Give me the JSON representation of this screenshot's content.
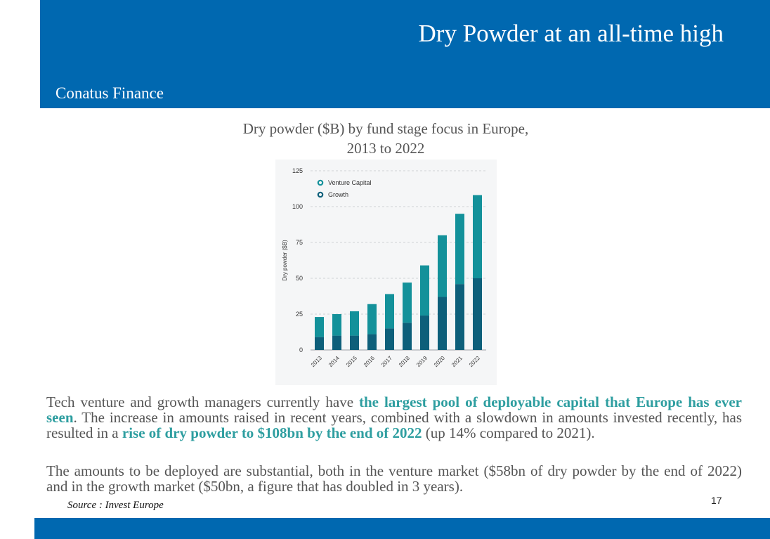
{
  "header": {
    "title": "Dry Powder at an all-time high",
    "brand": "Conatus Finance"
  },
  "chart_caption": {
    "line1": "Dry powder ($B) by fund stage focus in Europe,",
    "line2": "2013 to 2022"
  },
  "colors": {
    "header_bg": "#0068b0",
    "venture_capital": "#13919a",
    "growth": "#0d5f7a",
    "highlight_text": "#2e9ea0"
  },
  "chart_data": {
    "type": "bar",
    "stacked": true,
    "categories": [
      "2013",
      "2014",
      "2015",
      "2016",
      "2017",
      "2018",
      "2019",
      "2020",
      "2021",
      "2022"
    ],
    "series": [
      {
        "name": "Growth",
        "values": [
          9,
          10,
          10,
          11,
          15,
          19,
          24,
          37,
          46,
          50
        ]
      },
      {
        "name": "Venture Capital",
        "values": [
          14,
          15,
          17,
          21,
          24,
          28,
          35,
          43,
          49,
          58
        ]
      }
    ],
    "ylabel": "Dry powder ($B)",
    "xlabel": "",
    "ylim": [
      0,
      125
    ],
    "yticks": [
      0,
      25,
      50,
      75,
      100,
      125
    ],
    "grid": true,
    "legend_position": "top-left"
  },
  "body": {
    "p1_a": "Tech venture and growth managers currently have ",
    "p1_hl1": "the largest pool of deployable capital that Europe has ever seen",
    "p1_b": ". The increase in amounts raised in recent years, combined with a slowdown in amounts invested recently, has resulted in a ",
    "p1_hl2": "rise of dry powder to $108bn by the end of 2022",
    "p1_c": " (up 14% compared to 2021).",
    "p2": "The amounts to be deployed are substantial, both in the venture market ($58bn of dry powder by the end of 2022) and in the growth market ($50bn, a figure that has doubled in 3 years)."
  },
  "source": "Source : Invest Europe",
  "page_number": "17"
}
